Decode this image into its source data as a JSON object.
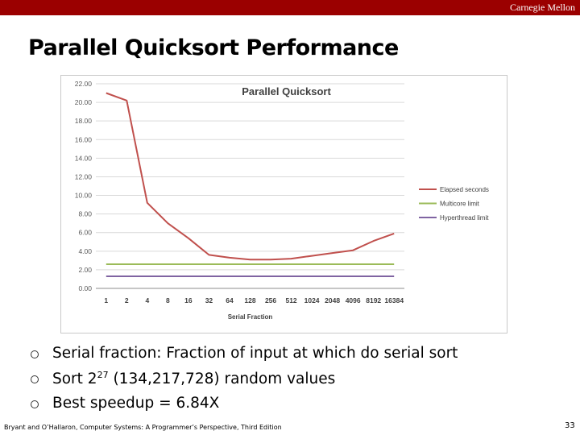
{
  "header": {
    "brand": "Carnegie Mellon",
    "bar_color": "#9b0000"
  },
  "slide": {
    "title": "Parallel Quicksort Performance"
  },
  "bullets": [
    {
      "pre": "Serial fraction: Fraction of input at which do serial sort"
    },
    {
      "pre": "Sort 2",
      "sup": "27",
      "post": " (134,217,728) random values"
    },
    {
      "pre": "Best speedup = 6.84X"
    }
  ],
  "footer": {
    "citation": "Bryant and O’Hallaron, Computer Systems: A Programmer’s Perspective, Third Edition",
    "page_number": "33"
  },
  "chart_data": {
    "type": "line",
    "title": "Parallel Quicksort",
    "xlabel": "Serial Fraction",
    "ylabel": "",
    "categories": [
      "1",
      "2",
      "4",
      "8",
      "16",
      "32",
      "64",
      "128",
      "256",
      "512",
      "1024",
      "2048",
      "4096",
      "8192",
      "16384"
    ],
    "yticks": [
      "0.00",
      "2.00",
      "4.00",
      "6.00",
      "8.00",
      "10.00",
      "12.00",
      "14.00",
      "16.00",
      "18.00",
      "20.00",
      "22.00"
    ],
    "ylim": [
      0,
      22
    ],
    "grid": true,
    "legend_position": "right",
    "series": [
      {
        "name": "Elapsed seconds",
        "color": "#c0504d",
        "values": [
          21.0,
          20.2,
          9.2,
          7.0,
          5.4,
          3.6,
          3.3,
          3.1,
          3.1,
          3.2,
          3.5,
          3.8,
          4.1,
          5.1,
          5.9
        ]
      },
      {
        "name": "Multicore limit",
        "color": "#9bbb59",
        "values": [
          2.6,
          2.6,
          2.6,
          2.6,
          2.6,
          2.6,
          2.6,
          2.6,
          2.6,
          2.6,
          2.6,
          2.6,
          2.6,
          2.6,
          2.6
        ]
      },
      {
        "name": "Hyperthread limit",
        "color": "#8064a2",
        "values": [
          1.3,
          1.3,
          1.3,
          1.3,
          1.3,
          1.3,
          1.3,
          1.3,
          1.3,
          1.3,
          1.3,
          1.3,
          1.3,
          1.3,
          1.3
        ]
      }
    ]
  }
}
